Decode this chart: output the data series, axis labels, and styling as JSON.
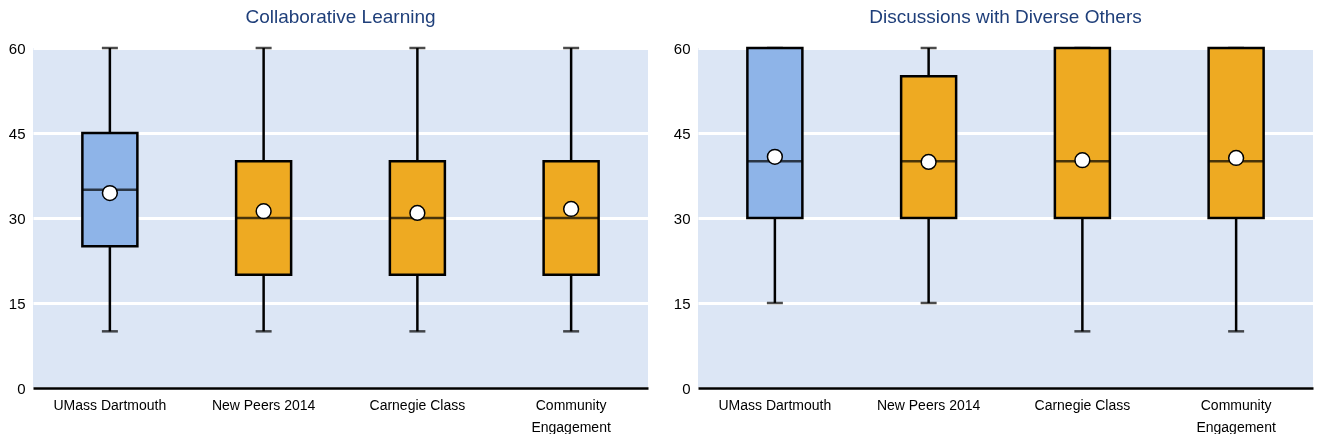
{
  "chart_data": [
    {
      "type": "box",
      "title": "Collaborative Learning",
      "categories": [
        "UMass Dartmouth",
        "New Peers 2014",
        "Carnegie Class",
        "Community Engagement"
      ],
      "colors": [
        "#8eb4e8",
        "#eeaa22",
        "#eeaa22",
        "#eeaa22"
      ],
      "boxes": [
        {
          "low": 10,
          "q1": 25,
          "median": 35,
          "q3": 45,
          "high": 60,
          "mean": 34.4
        },
        {
          "low": 10,
          "q1": 20,
          "median": 30,
          "q3": 40,
          "high": 60,
          "mean": 31.2
        },
        {
          "low": 10,
          "q1": 20,
          "median": 30,
          "q3": 40,
          "high": 60,
          "mean": 30.9
        },
        {
          "low": 10,
          "q1": 20,
          "median": 30,
          "q3": 40,
          "high": 60,
          "mean": 31.6
        }
      ],
      "ylim": [
        0,
        60
      ],
      "yticks": [
        0,
        15,
        30,
        45,
        60
      ],
      "grid": "y"
    },
    {
      "type": "box",
      "title": "Discussions with Diverse Others",
      "categories": [
        "UMass Dartmouth",
        "New Peers 2014",
        "Carnegie Class",
        "Community Engagement"
      ],
      "colors": [
        "#8eb4e8",
        "#eeaa22",
        "#eeaa22",
        "#eeaa22"
      ],
      "boxes": [
        {
          "low": 15,
          "q1": 30,
          "median": 40,
          "q3": 60,
          "high": 60,
          "mean": 40.8
        },
        {
          "low": 15,
          "q1": 30,
          "median": 40,
          "q3": 55,
          "high": 60,
          "mean": 39.9
        },
        {
          "low": 10,
          "q1": 30,
          "median": 40,
          "q3": 60,
          "high": 60,
          "mean": 40.2
        },
        {
          "low": 10,
          "q1": 30,
          "median": 40,
          "q3": 60,
          "high": 60,
          "mean": 40.6
        }
      ],
      "ylim": [
        0,
        60
      ],
      "yticks": [
        0,
        15,
        30,
        45,
        60
      ],
      "grid": "y"
    }
  ]
}
